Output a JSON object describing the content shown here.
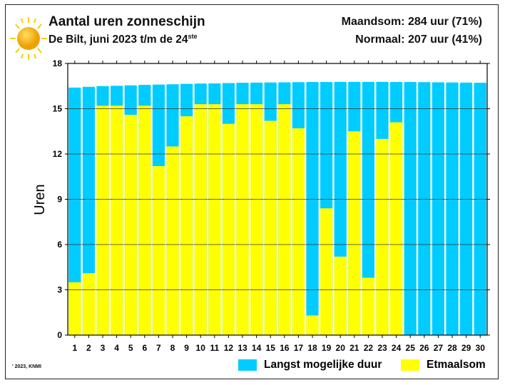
{
  "header": {
    "title": "Aantal uren zonneschijn",
    "subtitle": "De Bilt, juni 2023 t/m de 24",
    "subtitle_sup": "ste",
    "month_sum": "Maandsom: 284 uur (71%)",
    "normal": "Normaal: 207 uur (41%)",
    "icon": "sun-icon"
  },
  "copyright": "' 2023, KNMI",
  "colors": {
    "max": "#00ccff",
    "actual": "#ffff00"
  },
  "chart_data": {
    "type": "bar",
    "title": "Aantal uren zonneschijn",
    "xlabel": "",
    "ylabel": "Uren",
    "ylim": [
      0,
      18
    ],
    "yticks": [
      0,
      3,
      6,
      9,
      12,
      15,
      18
    ],
    "categories": [
      "1",
      "2",
      "3",
      "4",
      "5",
      "6",
      "7",
      "8",
      "9",
      "10",
      "11",
      "12",
      "13",
      "14",
      "15",
      "16",
      "17",
      "18",
      "19",
      "20",
      "21",
      "22",
      "23",
      "24",
      "25",
      "26",
      "27",
      "28",
      "29",
      "30"
    ],
    "series": [
      {
        "name": "Langst mogelijke duur",
        "values": [
          16.4,
          16.45,
          16.5,
          16.52,
          16.55,
          16.58,
          16.6,
          16.62,
          16.65,
          16.67,
          16.68,
          16.7,
          16.72,
          16.73,
          16.74,
          16.75,
          16.76,
          16.77,
          16.77,
          16.78,
          16.78,
          16.78,
          16.78,
          16.77,
          16.77,
          16.76,
          16.75,
          16.74,
          16.73,
          16.72
        ]
      },
      {
        "name": "Etmaalsom",
        "values": [
          3.5,
          4.1,
          15.2,
          15.2,
          14.6,
          15.2,
          11.2,
          12.5,
          14.5,
          15.3,
          15.3,
          14.0,
          15.3,
          15.3,
          14.2,
          15.3,
          13.7,
          1.3,
          8.4,
          5.2,
          13.5,
          3.8,
          13.0,
          14.1,
          null,
          null,
          null,
          null,
          null,
          null
        ]
      }
    ],
    "legend": "bottom",
    "grid": true
  }
}
